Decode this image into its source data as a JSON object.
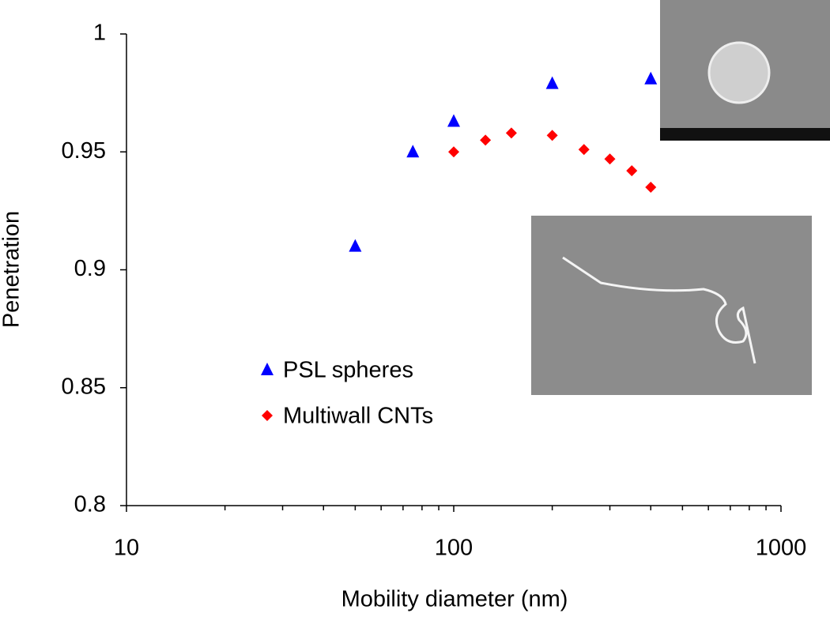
{
  "chart_data": {
    "type": "scatter",
    "xlabel": "Mobility diameter (nm)",
    "ylabel": "Penetration",
    "xscale": "log",
    "xlim": [
      10,
      1000
    ],
    "xticks": [
      10,
      100,
      1000
    ],
    "xminor_ticks": [
      20,
      30,
      40,
      50,
      60,
      70,
      80,
      90,
      200,
      300,
      400,
      500,
      600,
      700,
      800,
      900
    ],
    "ylim": [
      0.8,
      1
    ],
    "yticks": [
      0.8,
      0.85,
      0.9,
      0.95,
      1
    ],
    "grid": false,
    "legend": "center-left",
    "series": [
      {
        "name": "PSL spheres",
        "color": "#0000ff",
        "marker": "triangle",
        "x": [
          50,
          75,
          100,
          200,
          400
        ],
        "values": [
          0.91,
          0.95,
          0.963,
          0.979,
          0.981
        ]
      },
      {
        "name": "Multiwall CNTs",
        "color": "#ff0000",
        "marker": "diamond",
        "x": [
          100,
          125,
          150,
          200,
          250,
          300,
          350,
          400
        ],
        "values": [
          0.95,
          0.955,
          0.958,
          0.957,
          0.951,
          0.947,
          0.942,
          0.935
        ]
      }
    ]
  }
}
